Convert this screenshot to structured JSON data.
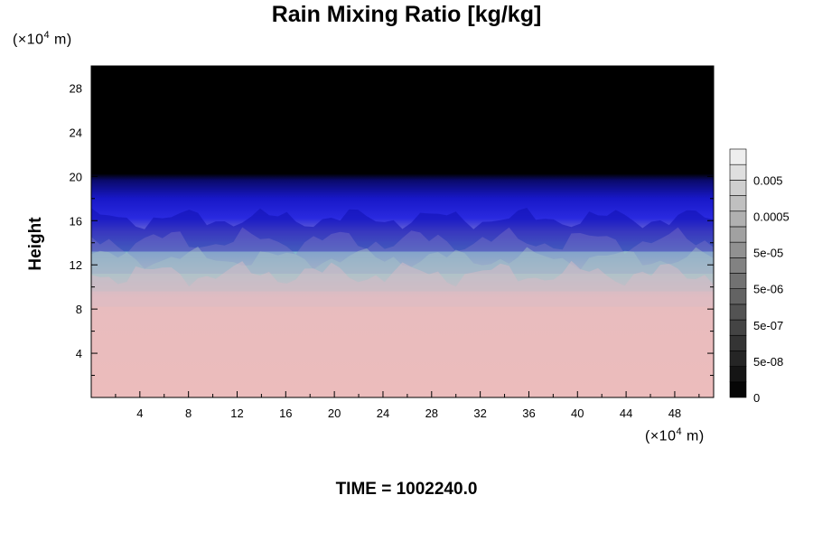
{
  "chart_data": {
    "type": "heatmap",
    "title": "Rain Mixing Ratio [kg/kg]",
    "ylabel": "Height",
    "x_unit": {
      "prefix": "(×10",
      "exp": "4",
      "suffix": " m)"
    },
    "y_unit": {
      "prefix": "(×10",
      "exp": "4",
      "suffix": " m)"
    },
    "xlim": [
      0,
      51.2
    ],
    "ylim": [
      0,
      30
    ],
    "x_ticks": [
      "4",
      "8",
      "12",
      "16",
      "20",
      "24",
      "28",
      "32",
      "36",
      "40",
      "44",
      "48"
    ],
    "y_ticks": [
      "4",
      "8",
      "12",
      "16",
      "20",
      "24",
      "28"
    ],
    "colorbar": {
      "labels": [
        "0",
        "5e-08",
        "5e-07",
        "5e-06",
        "5e-05",
        "0.0005",
        "0.005"
      ],
      "levels": 16
    },
    "layers": [
      {
        "name": "top",
        "color": "#000000",
        "y_range": [
          20,
          30
        ]
      },
      {
        "name": "upper",
        "color": "#1a1ad0",
        "y_range": [
          16,
          20
        ]
      },
      {
        "name": "middle",
        "color": "#8fc8c8",
        "y_range": [
          12,
          16
        ]
      },
      {
        "name": "lower",
        "color": "#eebcbc",
        "y_range": [
          0,
          11
        ]
      }
    ]
  },
  "footer": {
    "time": "TIME = 1002240.0"
  }
}
